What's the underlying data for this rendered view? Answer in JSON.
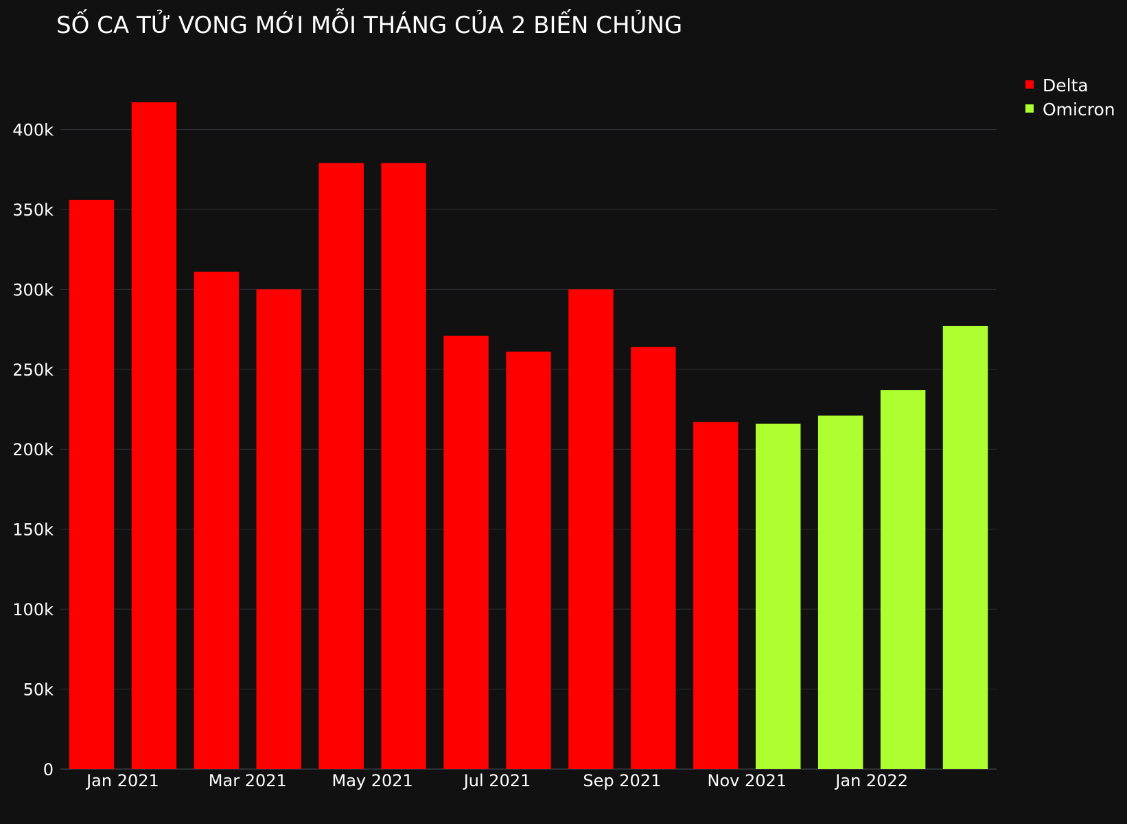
{
  "chart_data": {
    "type": "bar",
    "title": "SỐ CA TỬ VONG MỚI MỖI THÁNG CỦA 2 BIẾN CHỦNG",
    "xlabel": "",
    "ylabel": "",
    "x": [
      "2020-12",
      "2021-01",
      "2021-02",
      "2021-03",
      "2021-04",
      "2021-05",
      "2021-06",
      "2021-07",
      "2021-08",
      "2021-09",
      "2021-10",
      "2021-11",
      "2021-12",
      "2022-01",
      "2022-02"
    ],
    "series": [
      {
        "name": "Delta",
        "color": "#ff0000",
        "values": [
          356000,
          417000,
          311000,
          300000,
          379000,
          379000,
          271000,
          261000,
          300000,
          264000,
          217000,
          null,
          null,
          null,
          null
        ]
      },
      {
        "name": "Omicron",
        "color": "#adff2f",
        "values": [
          null,
          null,
          null,
          null,
          null,
          null,
          null,
          null,
          null,
          null,
          null,
          216000,
          221000,
          237000,
          277000
        ]
      }
    ],
    "x_tick_values": [
      "2021-01",
      "2021-03",
      "2021-05",
      "2021-07",
      "2021-09",
      "2021-11",
      "2022-01"
    ],
    "x_tick_labels": [
      "Jan 2021",
      "Mar 2021",
      "May 2021",
      "Jul 2021",
      "Sep 2021",
      "Nov 2021",
      "Jan 2022"
    ],
    "y_tick_values": [
      0,
      50000,
      100000,
      150000,
      200000,
      250000,
      300000,
      350000,
      400000
    ],
    "y_tick_labels": [
      "0",
      "50k",
      "100k",
      "150k",
      "200k",
      "250k",
      "300k",
      "350k",
      "400k"
    ],
    "ylim": [
      0,
      438000
    ],
    "grid": true,
    "legend_position": "top-right",
    "background_color": "#111111",
    "grid_color": "#2e3136"
  }
}
